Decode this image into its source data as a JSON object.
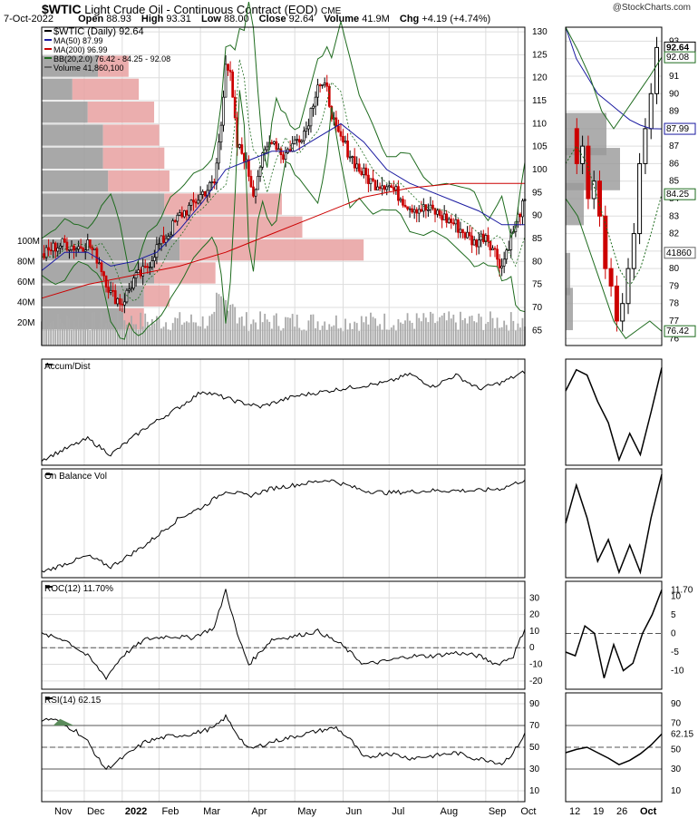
{
  "header": {
    "symbol": "$WTIC",
    "name": "Light Crude Oil - Continuous Contract (EOD)",
    "exchange": "CME",
    "source": "@StockCharts.com",
    "date": "7-Oct-2022",
    "quote": {
      "open_label": "Open",
      "open": "88.93",
      "high_label": "High",
      "high": "93.31",
      "low_label": "Low",
      "low": "88.00",
      "close_label": "Close",
      "close": "92.64",
      "volume_label": "Volume",
      "volume": "41.9M",
      "chg_label": "Chg",
      "chg": "+4.19 (+4.74%)"
    }
  },
  "colors": {
    "up": "#000000",
    "down": "#cc0000",
    "ma50": "#1a1aa0",
    "ma200": "#cc0000",
    "bb": "#1e6b1e",
    "volume": "#aaaaaa",
    "vbp_up": "#999999",
    "vbp_down": "#e8a0a0",
    "grid": "#dddddd",
    "rsi_fill": "#5a8a5a"
  },
  "chart_data": [
    {
      "panel": "price",
      "type": "candlestick",
      "legend": [
        {
          "text": "$WTIC (Daily) 92.64"
        },
        {
          "text": "MA(50) 87.99"
        },
        {
          "text": "MA(200) 96.99"
        },
        {
          "text": "BB(20,2.0) 76.42 - 84.25 - 92.08"
        },
        {
          "text": "Volume 41,860,100"
        }
      ],
      "months": [
        "Nov",
        "Dec",
        "2022",
        "Feb",
        "Mar",
        "Apr",
        "May",
        "Jun",
        "Jul",
        "Aug",
        "Sep",
        "Oct"
      ],
      "right_axis_ticks": [
        130,
        125,
        120,
        115,
        110,
        105,
        100,
        95,
        90,
        85,
        80,
        75,
        70,
        65
      ],
      "volume_axis_ticks": [
        "100M",
        "80M",
        "60M",
        "40M",
        "20M"
      ],
      "close_path": [
        [
          0,
          81
        ],
        [
          5,
          83
        ],
        [
          10,
          84
        ],
        [
          15,
          83
        ],
        [
          20,
          84
        ],
        [
          25,
          80
        ],
        [
          30,
          73
        ],
        [
          35,
          71
        ],
        [
          40,
          76
        ],
        [
          45,
          78
        ],
        [
          50,
          83
        ],
        [
          55,
          86
        ],
        [
          60,
          90
        ],
        [
          65,
          92
        ],
        [
          70,
          95
        ],
        [
          75,
          97
        ],
        [
          78,
          110
        ],
        [
          80,
          124
        ],
        [
          82,
          120
        ],
        [
          85,
          105
        ],
        [
          88,
          103
        ],
        [
          92,
          95
        ],
        [
          95,
          101
        ],
        [
          100,
          107
        ],
        [
          105,
          103
        ],
        [
          110,
          106
        ],
        [
          115,
          109
        ],
        [
          120,
          119
        ],
        [
          124,
          117
        ],
        [
          128,
          108
        ],
        [
          132,
          105
        ],
        [
          138,
          100
        ],
        [
          144,
          97
        ],
        [
          150,
          97
        ],
        [
          160,
          92
        ],
        [
          170,
          91
        ],
        [
          180,
          88
        ],
        [
          188,
          84
        ],
        [
          193,
          86
        ],
        [
          200,
          79
        ],
        [
          203,
          84
        ],
        [
          206,
          88
        ],
        [
          208,
          91
        ],
        [
          210,
          92.64
        ]
      ],
      "ma50": {
        "last": 87.99,
        "path": [
          [
            0,
            78
          ],
          [
            10,
            82
          ],
          [
            20,
            82
          ],
          [
            30,
            79
          ],
          [
            40,
            80
          ],
          [
            50,
            82
          ],
          [
            60,
            87
          ],
          [
            70,
            93
          ],
          [
            80,
            100
          ],
          [
            90,
            102
          ],
          [
            100,
            104
          ],
          [
            110,
            104
          ],
          [
            120,
            107
          ],
          [
            130,
            110
          ],
          [
            140,
            106
          ],
          [
            150,
            100
          ],
          [
            160,
            97
          ],
          [
            170,
            95
          ],
          [
            180,
            93
          ],
          [
            190,
            91
          ],
          [
            200,
            88
          ],
          [
            210,
            87.99
          ]
        ]
      },
      "ma200": {
        "last": 96.99,
        "path": [
          [
            0,
            72
          ],
          [
            20,
            75
          ],
          [
            40,
            77
          ],
          [
            60,
            79
          ],
          [
            80,
            82
          ],
          [
            100,
            86
          ],
          [
            120,
            90
          ],
          [
            140,
            94
          ],
          [
            160,
            96
          ],
          [
            180,
            97
          ],
          [
            200,
            97
          ],
          [
            210,
            96.99
          ]
        ]
      },
      "bollinger": {
        "lower": 76.42,
        "middle": 84.25,
        "upper": 92.08
      },
      "volume_by_price": [
        {
          "price": 122.5,
          "up": 55,
          "down": 30
        },
        {
          "price": 117.5,
          "up": 30,
          "down": 65
        },
        {
          "price": 112.5,
          "up": 45,
          "down": 65
        },
        {
          "price": 107.5,
          "up": 60,
          "down": 55
        },
        {
          "price": 102.5,
          "up": 60,
          "down": 60
        },
        {
          "price": 97.5,
          "up": 65,
          "down": 60
        },
        {
          "price": 92.5,
          "up": 120,
          "down": 115
        },
        {
          "price": 87.5,
          "up": 130,
          "down": 125
        },
        {
          "price": 82.5,
          "up": 135,
          "down": 180
        },
        {
          "price": 77.5,
          "up": 110,
          "down": 60
        },
        {
          "price": 72.5,
          "up": 100,
          "down": 25
        },
        {
          "price": 67.5,
          "up": 80,
          "down": 20
        }
      ]
    },
    {
      "panel": "accum_dist",
      "type": "line",
      "legend": "Accum/Dist",
      "path": [
        [
          0,
          0.05
        ],
        [
          20,
          0.25
        ],
        [
          30,
          0.1
        ],
        [
          45,
          0.35
        ],
        [
          60,
          0.55
        ],
        [
          70,
          0.7
        ],
        [
          85,
          0.6
        ],
        [
          95,
          0.55
        ],
        [
          110,
          0.65
        ],
        [
          130,
          0.72
        ],
        [
          150,
          0.78
        ],
        [
          160,
          0.86
        ],
        [
          170,
          0.74
        ],
        [
          180,
          0.85
        ],
        [
          190,
          0.72
        ],
        [
          200,
          0.78
        ],
        [
          210,
          0.88
        ]
      ]
    },
    {
      "panel": "obv",
      "type": "line",
      "legend": "On Balance Vol",
      "path": [
        [
          0,
          0.05
        ],
        [
          20,
          0.2
        ],
        [
          30,
          0.1
        ],
        [
          45,
          0.3
        ],
        [
          60,
          0.55
        ],
        [
          70,
          0.65
        ],
        [
          80,
          0.8
        ],
        [
          90,
          0.75
        ],
        [
          100,
          0.82
        ],
        [
          125,
          0.9
        ],
        [
          140,
          0.8
        ],
        [
          150,
          0.78
        ],
        [
          170,
          0.8
        ],
        [
          190,
          0.8
        ],
        [
          200,
          0.82
        ],
        [
          210,
          0.9
        ]
      ]
    },
    {
      "panel": "roc",
      "type": "line",
      "legend": "ROC(12) 11.70%",
      "last": 11.7,
      "axis_ticks": [
        30,
        20,
        10,
        0,
        -10,
        -20
      ],
      "path": [
        [
          0,
          8
        ],
        [
          10,
          5
        ],
        [
          20,
          -5
        ],
        [
          28,
          -18
        ],
        [
          35,
          -5
        ],
        [
          45,
          5
        ],
        [
          55,
          7
        ],
        [
          65,
          6
        ],
        [
          75,
          12
        ],
        [
          80,
          35
        ],
        [
          85,
          8
        ],
        [
          90,
          -10
        ],
        [
          100,
          5
        ],
        [
          110,
          7
        ],
        [
          120,
          10
        ],
        [
          130,
          2
        ],
        [
          140,
          -10
        ],
        [
          150,
          -8
        ],
        [
          160,
          -5
        ],
        [
          170,
          -5
        ],
        [
          180,
          -3
        ],
        [
          190,
          -5
        ],
        [
          198,
          -10
        ],
        [
          205,
          -5
        ],
        [
          210,
          11.7
        ]
      ]
    },
    {
      "panel": "rsi",
      "type": "line",
      "legend": "RSI(14) 62.15",
      "last": 62.15,
      "axis_ticks": [
        90,
        70,
        50,
        30,
        10
      ],
      "path": [
        [
          0,
          75
        ],
        [
          5,
          76
        ],
        [
          10,
          70
        ],
        [
          15,
          65
        ],
        [
          20,
          55
        ],
        [
          25,
          38
        ],
        [
          28,
          30
        ],
        [
          35,
          40
        ],
        [
          45,
          55
        ],
        [
          55,
          60
        ],
        [
          65,
          62
        ],
        [
          75,
          68
        ],
        [
          80,
          78
        ],
        [
          85,
          62
        ],
        [
          90,
          48
        ],
        [
          100,
          55
        ],
        [
          110,
          60
        ],
        [
          120,
          65
        ],
        [
          128,
          68
        ],
        [
          135,
          55
        ],
        [
          140,
          40
        ],
        [
          150,
          45
        ],
        [
          160,
          40
        ],
        [
          170,
          42
        ],
        [
          180,
          45
        ],
        [
          188,
          40
        ],
        [
          195,
          38
        ],
        [
          200,
          35
        ],
        [
          205,
          45
        ],
        [
          210,
          62.15
        ]
      ]
    },
    {
      "panel": "zoom",
      "type": "candlestick",
      "x_ticks": [
        "12",
        "19",
        "26",
        "Oct"
      ],
      "right_axis_ticks": [
        93,
        92,
        91,
        90,
        89,
        88,
        87,
        86,
        85,
        84,
        83,
        82,
        81,
        80,
        79,
        78,
        77,
        76
      ],
      "labels": {
        "close": "92.64",
        "bb_upper": "92.08",
        "ma50": "87.99",
        "bb_mid": "84.25",
        "volume": "41860",
        "bb_lower": "76.42"
      },
      "roc_ticks": [
        "11.70",
        "10",
        "5",
        "0",
        "-5",
        "-10"
      ],
      "rsi_ticks": [
        "90",
        "70",
        "62.15",
        "50",
        "30",
        "10"
      ]
    }
  ]
}
